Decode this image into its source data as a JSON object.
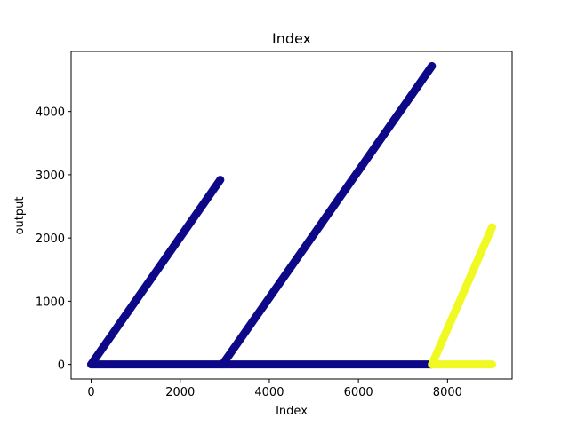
{
  "chart_data": {
    "type": "scatter",
    "title": "Index",
    "xlabel": "Index",
    "ylabel": "output",
    "xlim": [
      -450,
      9450
    ],
    "ylim": [
      -230,
      4950
    ],
    "x_ticks": [
      0,
      2000,
      4000,
      6000,
      8000
    ],
    "y_ticks": [
      0,
      1000,
      2000,
      3000,
      4000
    ],
    "grid": false,
    "legend": "none",
    "series": [
      {
        "color": "#0d0887",
        "segments": [
          {
            "x": [
              0,
              2900
            ],
            "y": [
              0,
              2920
            ]
          },
          {
            "x": [
              0,
              7650
            ],
            "y": [
              0,
              0
            ]
          },
          {
            "x": [
              2950,
              7650
            ],
            "y": [
              0,
              4720
            ]
          }
        ]
      },
      {
        "color": "#f0f921",
        "segments": [
          {
            "x": [
              7650,
              9000
            ],
            "y": [
              0,
              2170
            ]
          },
          {
            "x": [
              7650,
              9000
            ],
            "y": [
              0,
              0
            ]
          }
        ]
      }
    ]
  }
}
